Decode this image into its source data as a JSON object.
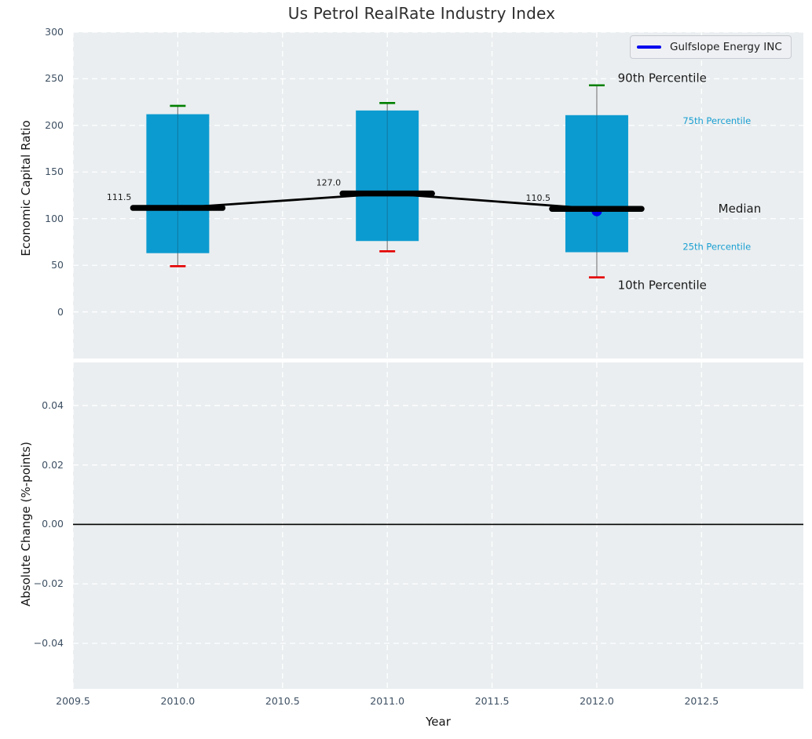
{
  "figure_title": "Us Petrol RealRate Industry Index",
  "colors": {
    "axes_background": "#eaeef0",
    "grid": "#ffffff",
    "box_fill": "#0c9bd0",
    "cap_90": "#008000",
    "cap_10": "#e50000",
    "whisker": "#808080",
    "median_line": "#000000",
    "company_line": "#0000ee",
    "tick_label": "#3e5063",
    "annotation_dark": "#1a1a1a",
    "annotation_cyan": "#1a9fd2",
    "zero_line": "#000000"
  },
  "legend": {
    "label": "Gulfslope Energy INC"
  },
  "chart_data": [
    {
      "type": "box",
      "title": "Us Petrol RealRate Industry Index",
      "xlabel": "Year",
      "ylabel": "Economic Capital Ratio",
      "xlim": [
        2009.5,
        2012.986
      ],
      "ylim": [
        -50,
        300
      ],
      "xticks": [
        2009.5,
        2010.0,
        2010.5,
        2011.0,
        2011.5,
        2012.0,
        2012.5
      ],
      "xtick_labels": [
        "2009.5",
        "2010.0",
        "2010.5",
        "2011.0",
        "2011.5",
        "2012.0",
        "2012.5"
      ],
      "show_xtick_labels": false,
      "yticks": [
        0,
        50,
        100,
        150,
        200,
        250,
        300
      ],
      "ytick_labels": [
        "0",
        "50",
        "100",
        "150",
        "200",
        "250",
        "300"
      ],
      "grid": "white-dashed",
      "legend": {
        "label": "Gulfslope Energy INC",
        "position": "upper right"
      },
      "series": {
        "years": [
          2010,
          2011,
          2012
        ],
        "p10": [
          49,
          65,
          37
        ],
        "p25": [
          63,
          76,
          64
        ],
        "median": [
          111.5,
          127.0,
          110.5
        ],
        "p75": [
          212,
          216,
          211
        ],
        "p90": [
          221,
          224,
          243
        ]
      },
      "median_labels": [
        "111.5",
        "127.0",
        "110.5"
      ],
      "company_point": {
        "name": "Gulfslope Energy INC",
        "year": 2012,
        "value": 108
      },
      "annotations": [
        {
          "text": "90th Percentile",
          "x": 2012.1,
          "y": 251,
          "size": 15,
          "color": "#1a1a1a"
        },
        {
          "text": "75th Percentile",
          "x": 2012.41,
          "y": 205,
          "size": 11.5,
          "color": "#1a9fd2"
        },
        {
          "text": "Median",
          "x": 2012.58,
          "y": 111,
          "size": 15,
          "color": "#1a1a1a"
        },
        {
          "text": "25th Percentile",
          "x": 2012.41,
          "y": 70,
          "size": 11.5,
          "color": "#1a9fd2"
        },
        {
          "text": "10th Percentile",
          "x": 2012.1,
          "y": 29,
          "size": 15,
          "color": "#1a1a1a"
        }
      ]
    },
    {
      "type": "line",
      "title": "",
      "xlabel": "Year",
      "ylabel": "Absolute Change (%-points)",
      "xlim": [
        2009.5,
        2012.986
      ],
      "ylim": [
        -0.0553,
        0.0545
      ],
      "xticks": [
        2009.5,
        2010.0,
        2010.5,
        2011.0,
        2011.5,
        2012.0,
        2012.5
      ],
      "xtick_labels": [
        "2009.5",
        "2010.0",
        "2010.5",
        "2011.0",
        "2011.5",
        "2012.0",
        "2012.5"
      ],
      "show_xtick_labels": true,
      "yticks": [
        0.04,
        0.02,
        0.0,
        -0.02,
        -0.04
      ],
      "ytick_labels": [
        "0.04",
        "0.02",
        "0.00",
        "−0.02",
        "−0.04"
      ],
      "grid": "white-dashed",
      "zero_line": 0.0,
      "series": []
    }
  ]
}
